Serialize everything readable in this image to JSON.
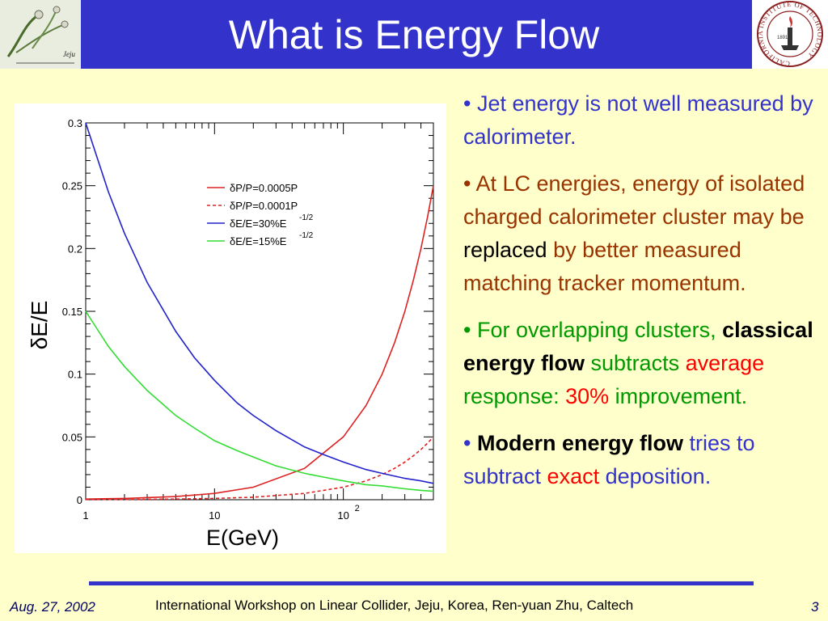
{
  "slide": {
    "title": "What is Energy Flow",
    "footer": {
      "date": "Aug. 27, 2002",
      "text": "International Workshop on Linear Collider, Jeju, Korea, Ren-yuan Zhu, Caltech",
      "page": "3"
    },
    "logo_right": {
      "ring_text": "CALIFORNIA INSTITUTE OF TECHNOLOGY",
      "year": "1891"
    },
    "logo_left": {
      "text": "Jeju"
    },
    "bullets": [
      {
        "segments": [
          {
            "text": "• Jet energy is not well measured by calorimeter.",
            "color": "#3333cc",
            "bold": false
          }
        ]
      },
      {
        "segments": [
          {
            "text": "• At LC energies, energy of isolated charged calorimeter cluster may be ",
            "color": "#993300",
            "bold": false
          },
          {
            "text": "replaced",
            "color": "#000000",
            "bold": false
          },
          {
            "text": " by better measured matching tracker momentum.",
            "color": "#993300",
            "bold": false
          }
        ]
      },
      {
        "segments": [
          {
            "text": "• For overlapping clusters, ",
            "color": "#009900",
            "bold": false
          },
          {
            "text": "classical energy flow",
            "color": "#000000",
            "bold": true
          },
          {
            "text": " subtracts ",
            "color": "#009900",
            "bold": false
          },
          {
            "text": "average",
            "color": "#ff0000",
            "bold": false
          },
          {
            "text": " response: ",
            "color": "#009900",
            "bold": false
          },
          {
            "text": "30%",
            "color": "#ff0000",
            "bold": false
          },
          {
            "text": " improvement.",
            "color": "#009900",
            "bold": false
          }
        ]
      },
      {
        "segments": [
          {
            "text": "• ",
            "color": "#3333cc",
            "bold": false
          },
          {
            "text": "Modern energy flow",
            "color": "#000000",
            "bold": true
          },
          {
            "text": " tries to subtract ",
            "color": "#3333cc",
            "bold": false
          },
          {
            "text": "exact",
            "color": "#ff0000",
            "bold": false
          },
          {
            "text": " deposition.",
            "color": "#3333cc",
            "bold": false
          }
        ]
      }
    ]
  },
  "chart_data": {
    "type": "line",
    "xlabel": "E(GeV)",
    "ylabel": "δE/E",
    "xscale": "log",
    "xlim": [
      1,
      500
    ],
    "ylim": [
      0,
      0.3
    ],
    "xticks": [
      {
        "value": 1,
        "label": "1"
      },
      {
        "value": 10,
        "label": "10"
      },
      {
        "value": 100,
        "label": "10",
        "sup": "2"
      }
    ],
    "yticks": [
      {
        "value": 0,
        "label": "0"
      },
      {
        "value": 0.05,
        "label": "0.05"
      },
      {
        "value": 0.1,
        "label": "0.1"
      },
      {
        "value": 0.15,
        "label": "0.15"
      },
      {
        "value": 0.2,
        "label": "0.2"
      },
      {
        "value": 0.25,
        "label": "0.25"
      },
      {
        "value": 0.3,
        "label": "0.3"
      }
    ],
    "legend_position": "top-right",
    "series": [
      {
        "name": "δP/P=0.0005P",
        "color": "#dd2222",
        "dash": false,
        "x": [
          1,
          2,
          5,
          10,
          20,
          50,
          100,
          150,
          200,
          250,
          300,
          350,
          400,
          450,
          500
        ],
        "y": [
          0.0005,
          0.001,
          0.0025,
          0.005,
          0.01,
          0.025,
          0.05,
          0.075,
          0.1,
          0.125,
          0.15,
          0.175,
          0.2,
          0.225,
          0.25
        ]
      },
      {
        "name": "δP/P=0.0001P",
        "color": "#dd2222",
        "dash": true,
        "x": [
          1,
          2,
          5,
          10,
          20,
          50,
          100,
          150,
          200,
          250,
          300,
          350,
          400,
          450,
          500
        ],
        "y": [
          0.0001,
          0.0002,
          0.0005,
          0.001,
          0.002,
          0.005,
          0.01,
          0.015,
          0.02,
          0.025,
          0.03,
          0.035,
          0.04,
          0.045,
          0.05
        ]
      },
      {
        "name": "δE/E=30%E",
        "name_sup": "-1/2",
        "color": "#2222cc",
        "dash": false,
        "x": [
          1,
          1.5,
          2,
          3,
          5,
          7,
          10,
          15,
          20,
          30,
          50,
          70,
          100,
          150,
          200,
          300,
          400,
          500
        ],
        "y": [
          0.3,
          0.245,
          0.212,
          0.173,
          0.134,
          0.113,
          0.095,
          0.077,
          0.067,
          0.055,
          0.042,
          0.036,
          0.03,
          0.024,
          0.021,
          0.017,
          0.015,
          0.013
        ]
      },
      {
        "name": "δE/E=15%E",
        "name_sup": "-1/2",
        "color": "#33dd33",
        "dash": false,
        "x": [
          1,
          1.5,
          2,
          3,
          5,
          7,
          10,
          15,
          20,
          30,
          50,
          70,
          100,
          150,
          200,
          300,
          400,
          500
        ],
        "y": [
          0.15,
          0.122,
          0.106,
          0.087,
          0.067,
          0.057,
          0.047,
          0.039,
          0.034,
          0.027,
          0.021,
          0.018,
          0.015,
          0.012,
          0.011,
          0.0087,
          0.0075,
          0.0067
        ]
      }
    ]
  }
}
